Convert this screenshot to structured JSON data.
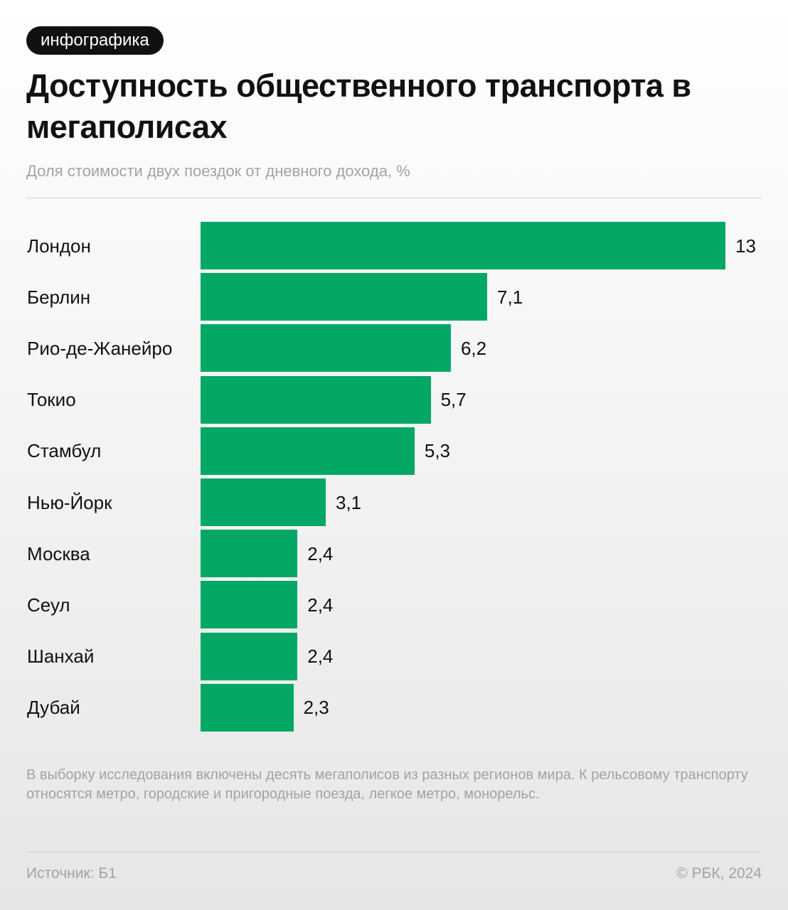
{
  "tag": "инфографика",
  "chart_data": {
    "type": "bar",
    "orientation": "horizontal",
    "title": "Доступность общественного транспорта в мегаполисах",
    "subtitle": "Доля стоимости двух поездок от дневного дохода, %",
    "categories": [
      "Лондон",
      "Берлин",
      "Рио-де-Жанейро",
      "Токио",
      "Стамбул",
      "Нью-Йорк",
      "Москва",
      "Сеул",
      "Шанхай",
      "Дубай"
    ],
    "values": [
      13,
      7.1,
      6.2,
      5.7,
      5.3,
      3.1,
      2.4,
      2.4,
      2.4,
      2.3
    ],
    "value_labels": [
      "13",
      "7,1",
      "6,2",
      "5,7",
      "5,3",
      "3,1",
      "2,4",
      "2,4",
      "2,4",
      "2,3"
    ],
    "color": "#03a865"
  },
  "note": "В выборку исследования включены десять мегаполисов из разных регионов мира. К рельсовому транспорту относятся метро, городские и пригородные поезда, легкое метро, монорельс.",
  "source": "Источник: Б1",
  "credit": "© РБК, 2024"
}
